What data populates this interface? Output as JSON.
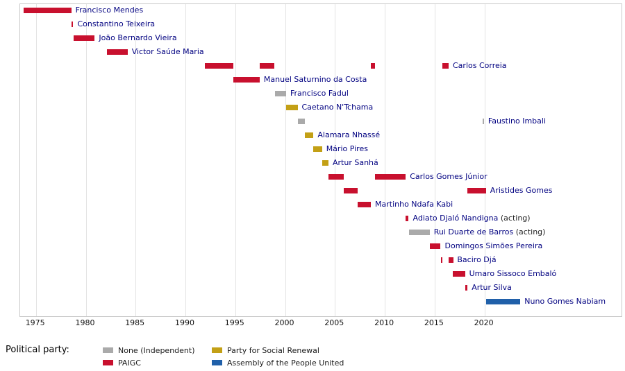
{
  "chart_data": {
    "type": "bar",
    "subtype": "horizontal-timeline",
    "xlim": [
      1973.42,
      2033.75
    ],
    "x_ticks": [
      1975,
      1980,
      1985,
      1990,
      1995,
      2000,
      2005,
      2010,
      2015,
      2020
    ],
    "grid": "vertical-lines",
    "legend_position": "bottom",
    "parties": {
      "none": {
        "label": "None (Independent)",
        "color": "#aaaaaa"
      },
      "paigc": {
        "label": "PAIGC",
        "color": "#c8102e"
      },
      "prs": {
        "label": "Party for Social Renewal",
        "color": "#c3a016"
      },
      "apu": {
        "label": "Assembly of the People United",
        "color": "#2060a9"
      }
    },
    "rows": [
      {
        "name": "Francisco Mendes",
        "party": "paigc",
        "terms": [
          [
            1973.75,
            1978.55
          ]
        ]
      },
      {
        "name": "Constantino Teixeira",
        "party": "paigc",
        "terms": [
          [
            1978.55,
            1978.75
          ]
        ]
      },
      {
        "name": "João Bernardo Vieira",
        "party": "paigc",
        "terms": [
          [
            1978.75,
            1980.9
          ]
        ]
      },
      {
        "name": "Victor Saúde Maria",
        "party": "paigc",
        "terms": [
          [
            1982.1,
            1984.2
          ]
        ]
      },
      {
        "name": "Carlos Correia",
        "party": "paigc",
        "terms": [
          [
            1991.95,
            1994.8
          ],
          [
            1997.45,
            1998.95
          ],
          [
            2008.6,
            2009.0
          ],
          [
            2015.75,
            2016.4
          ]
        ]
      },
      {
        "name": "Manuel Saturnino da Costa",
        "party": "paigc",
        "terms": [
          [
            1994.8,
            1997.45
          ]
        ]
      },
      {
        "name": "Francisco Fadul",
        "party": "none",
        "terms": [
          [
            1998.95,
            2000.1
          ]
        ]
      },
      {
        "name": "Caetano N'Tchama",
        "party": "prs",
        "terms": [
          [
            2000.1,
            2001.25
          ]
        ]
      },
      {
        "name": "Faustino Imbali",
        "party": "none",
        "terms": [
          [
            2001.25,
            2001.95
          ],
          [
            2019.8,
            2019.95
          ]
        ]
      },
      {
        "name": "Alamara Nhassé",
        "party": "prs",
        "terms": [
          [
            2001.95,
            2002.85
          ]
        ]
      },
      {
        "name": "Mário Pires",
        "party": "prs",
        "terms": [
          [
            2002.85,
            2003.7
          ]
        ]
      },
      {
        "name": "Artur Sanhá",
        "party": "prs",
        "terms": [
          [
            2003.7,
            2004.35
          ]
        ]
      },
      {
        "name": "Carlos Gomes Júnior",
        "party": "paigc",
        "terms": [
          [
            2004.35,
            2005.85
          ],
          [
            2009.0,
            2012.1
          ]
        ]
      },
      {
        "name": "Aristides Gomes",
        "party": "paigc",
        "terms": [
          [
            2005.85,
            2007.3
          ],
          [
            2018.3,
            2020.15
          ]
        ]
      },
      {
        "name": "Martinho Ndafa Kabi",
        "party": "paigc",
        "terms": [
          [
            2007.3,
            2008.6
          ]
        ]
      },
      {
        "name": "Adiato Djaló Nandigna",
        "suffix": "(acting)",
        "party": "paigc",
        "terms": [
          [
            2012.1,
            2012.4
          ]
        ]
      },
      {
        "name": "Rui Duarte de Barros",
        "suffix": "(acting)",
        "party": "none",
        "terms": [
          [
            2012.4,
            2014.5
          ]
        ]
      },
      {
        "name": "Domingos Simões Pereira",
        "party": "paigc",
        "terms": [
          [
            2014.5,
            2015.6
          ]
        ]
      },
      {
        "name": "Baciro Djá",
        "party": "paigc",
        "terms": [
          [
            2015.6,
            2015.75
          ],
          [
            2016.4,
            2016.85
          ]
        ]
      },
      {
        "name": "Umaro Sissoco Embaló",
        "party": "paigc",
        "terms": [
          [
            2016.85,
            2018.05
          ]
        ]
      },
      {
        "name": "Artur Silva",
        "party": "paigc",
        "terms": [
          [
            2018.05,
            2018.3
          ]
        ]
      },
      {
        "name": "Nuno Gomes Nabiam",
        "party": "apu",
        "terms": [
          [
            2020.15,
            2023.6
          ]
        ]
      }
    ],
    "legend": {
      "title": "Political party:",
      "items": [
        {
          "party": "none",
          "label": "None (Independent)"
        },
        {
          "party": "paigc",
          "label": "PAIGC"
        },
        {
          "party": "prs",
          "label": "Party for Social Renewal"
        },
        {
          "party": "apu",
          "label": "Assembly of the People United"
        }
      ]
    }
  }
}
